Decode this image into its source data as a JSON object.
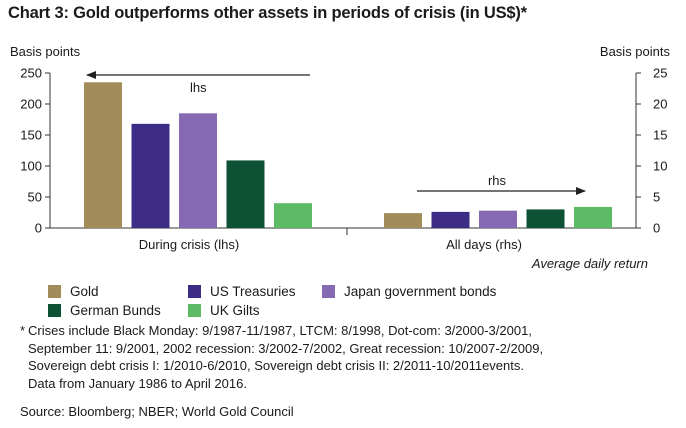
{
  "title": "Chart 3: Gold outperforms other assets in periods of crisis (in US$)*",
  "chart_data": {
    "type": "bar",
    "left_axis_label": "Basis points",
    "right_axis_label": "Basis points",
    "left_ticks": [
      "0",
      "50",
      "100",
      "150",
      "200",
      "250"
    ],
    "right_ticks": [
      "0",
      "5",
      "10",
      "15",
      "20",
      "25"
    ],
    "ylim_left": [
      0,
      250
    ],
    "ylim_right": [
      0,
      25
    ],
    "categories": [
      "During crisis (lhs)",
      "All days (rhs)"
    ],
    "series": [
      {
        "name": "Gold",
        "color": "#A28C5A",
        "values": [
          235,
          2.4
        ]
      },
      {
        "name": "US Treasuries",
        "color": "#3D2C86",
        "values": [
          168,
          2.6
        ]
      },
      {
        "name": "Japan government bonds",
        "color": "#8569B2",
        "values": [
          185,
          2.8
        ]
      },
      {
        "name": "German Bunds",
        "color": "#0E5236",
        "values": [
          109,
          3.0
        ]
      },
      {
        "name": "UK Gilts",
        "color": "#5DBA65",
        "values": [
          40,
          3.4
        ]
      }
    ],
    "annotations": {
      "lhs": "lhs",
      "rhs": "rhs"
    },
    "x_note": "Average daily return",
    "legend_position": "bottom",
    "grid": false
  },
  "footnote": {
    "marker": "*",
    "lines": [
      "Crises include Black Monday: 9/1987-11/1987, LTCM: 8/1998, Dot-com: 3/2000-3/2001,",
      "September 11: 9/2001, 2002 recession: 3/2002-7/2002, Great recession: 10/2007-2/2009,",
      "Sovereign debt crisis I: 1/2010-6/2010, Sovereign debt crisis II: 2/2011-10/2011events.",
      "Data from January 1986 to April 2016."
    ]
  },
  "source": "Source: Bloomberg; NBER; World Gold Council"
}
